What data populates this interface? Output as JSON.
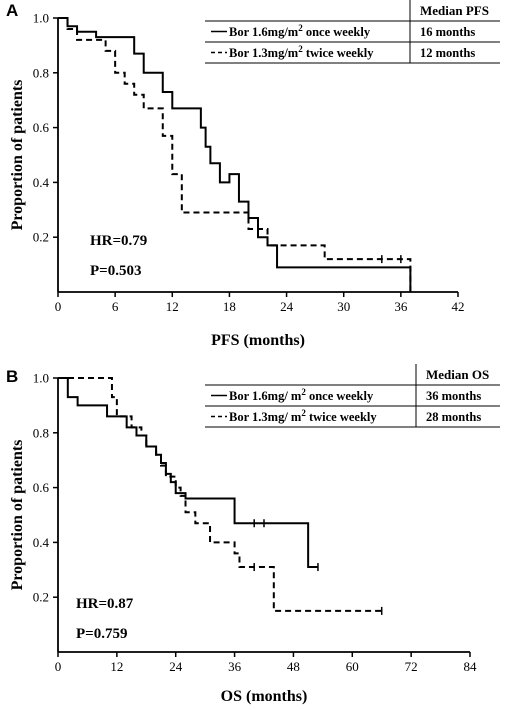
{
  "chart_data": [
    {
      "type": "line",
      "panel_label": "A",
      "xlabel": "PFS (months)",
      "ylabel": "Proportion of  patients",
      "xlim": [
        0,
        42
      ],
      "ylim": [
        0,
        1.0
      ],
      "xticks": [
        0,
        6,
        12,
        18,
        24,
        30,
        36,
        42
      ],
      "yticks": [
        0.2,
        0.4,
        0.6,
        0.8,
        1.0
      ],
      "xtick_labels": [
        "0",
        "6",
        "12",
        "18",
        "24",
        "30",
        "36",
        "42"
      ],
      "ytick_labels": [
        "0.2",
        "0.4",
        "0.6",
        "0.8",
        "1.0"
      ],
      "annotations": {
        "hr": "HR=0.79",
        "p": "P=0.503"
      },
      "legend": {
        "header": "Median PFS",
        "rows": [
          {
            "label_pre": "Bor 1.6mg/m",
            "sup": "2",
            "label_post": " once weekly",
            "median": "16 months"
          },
          {
            "label_pre": "Bor 1.3mg/m",
            "sup": "2",
            "label_post": " twice weekly",
            "median": "12 months"
          }
        ]
      },
      "series": [
        {
          "style": "solid",
          "steps": [
            [
              0,
              1.0
            ],
            [
              1,
              0.97
            ],
            [
              2,
              0.95
            ],
            [
              4,
              0.93
            ],
            [
              8,
              0.87
            ],
            [
              9,
              0.8
            ],
            [
              11,
              0.73
            ],
            [
              12,
              0.67
            ],
            [
              15,
              0.6
            ],
            [
              15.5,
              0.53
            ],
            [
              16,
              0.47
            ],
            [
              17,
              0.4
            ],
            [
              18,
              0.43
            ],
            [
              19,
              0.33
            ],
            [
              20,
              0.27
            ],
            [
              21,
              0.2
            ],
            [
              22,
              0.17
            ],
            [
              23,
              0.09
            ],
            [
              37,
              0.09
            ],
            [
              37,
              0.0
            ]
          ],
          "censors": []
        },
        {
          "style": "dashed",
          "steps": [
            [
              0,
              1.0
            ],
            [
              1,
              0.96
            ],
            [
              2,
              0.92
            ],
            [
              5,
              0.88
            ],
            [
              6,
              0.8
            ],
            [
              7,
              0.76
            ],
            [
              8,
              0.72
            ],
            [
              9,
              0.67
            ],
            [
              11,
              0.57
            ],
            [
              12,
              0.43
            ],
            [
              13,
              0.29
            ],
            [
              20,
              0.23
            ],
            [
              22,
              0.17
            ],
            [
              28,
              0.12
            ],
            [
              37,
              0.12
            ],
            [
              37,
              0.0
            ]
          ],
          "censors": [
            [
              34,
              0.12
            ],
            [
              36,
              0.12
            ]
          ]
        }
      ]
    },
    {
      "type": "line",
      "panel_label": "B",
      "xlabel": "OS (months)",
      "ylabel": "Proportion of  patients",
      "xlim": [
        0,
        84
      ],
      "ylim": [
        0,
        1.0
      ],
      "xticks": [
        0,
        12,
        24,
        36,
        48,
        60,
        72,
        84
      ],
      "yticks": [
        0.2,
        0.4,
        0.6,
        0.8,
        1.0
      ],
      "xtick_labels": [
        "0",
        "12",
        "24",
        "36",
        "48",
        "60",
        "72",
        "84"
      ],
      "ytick_labels": [
        "0.2",
        "0.4",
        "0.6",
        "0.8",
        "1.0"
      ],
      "annotations": {
        "hr": "HR=0.87",
        "p": "P=0.759"
      },
      "legend": {
        "header": "Median OS",
        "rows": [
          {
            "label_pre": "Bor 1.6mg/ m",
            "sup": "2",
            "label_post": " once weekly",
            "median": "36 months"
          },
          {
            "label_pre": "Bor 1.3mg/ m",
            "sup": "2",
            "label_post": " twice weekly",
            "median": "28 months"
          }
        ]
      },
      "series": [
        {
          "style": "solid",
          "steps": [
            [
              0,
              1.0
            ],
            [
              2,
              0.93
            ],
            [
              4,
              0.9
            ],
            [
              10,
              0.86
            ],
            [
              14,
              0.82
            ],
            [
              16,
              0.79
            ],
            [
              18,
              0.75
            ],
            [
              20,
              0.72
            ],
            [
              21,
              0.69
            ],
            [
              22,
              0.65
            ],
            [
              23,
              0.62
            ],
            [
              24,
              0.58
            ],
            [
              26,
              0.56
            ],
            [
              36,
              0.47
            ],
            [
              51,
              0.31
            ],
            [
              53,
              0.31
            ]
          ],
          "censors": [
            [
              40,
              0.47
            ],
            [
              42,
              0.47
            ],
            [
              53,
              0.31
            ]
          ]
        },
        {
          "style": "dashed",
          "steps": [
            [
              0,
              1.0
            ],
            [
              11,
              0.93
            ],
            [
              12,
              0.86
            ],
            [
              15,
              0.82
            ],
            [
              17,
              0.79
            ],
            [
              18,
              0.75
            ],
            [
              20,
              0.72
            ],
            [
              21,
              0.68
            ],
            [
              22,
              0.64
            ],
            [
              24,
              0.6
            ],
            [
              25,
              0.57
            ],
            [
              26,
              0.51
            ],
            [
              28,
              0.47
            ],
            [
              31,
              0.4
            ],
            [
              36,
              0.36
            ],
            [
              37,
              0.31
            ],
            [
              44,
              0.15
            ],
            [
              66,
              0.15
            ]
          ],
          "censors": [
            [
              40,
              0.31
            ],
            [
              66,
              0.15
            ]
          ]
        }
      ]
    }
  ]
}
